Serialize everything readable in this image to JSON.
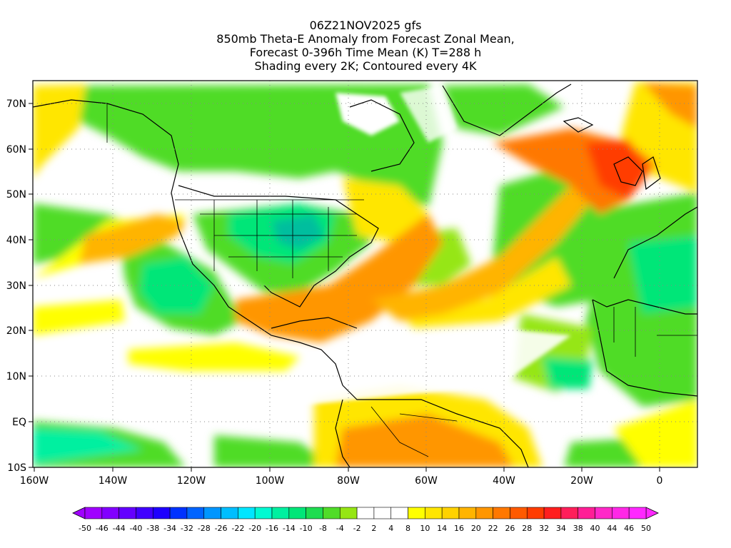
{
  "title": {
    "line1": "06Z21NOV2025 gfs",
    "line2": "850mb Theta-E Anomaly from Forecast Zonal Mean,",
    "line3": "Forecast 0-396h Time Mean (K) T=288 h",
    "line4": "Shading every 2K; Contoured every 4K"
  },
  "map": {
    "lon_range": [
      -160,
      10
    ],
    "lat_range": [
      -10,
      75
    ],
    "x_ticks": [
      "160W",
      "140W",
      "120W",
      "100W",
      "80W",
      "60W",
      "40W",
      "20W",
      "0"
    ],
    "y_ticks": [
      "10S",
      "EQ",
      "10N",
      "20N",
      "30N",
      "40N",
      "50N",
      "60N",
      "70N"
    ],
    "grid": "dotted"
  },
  "colorbar": {
    "labels": [
      "-50",
      "-46",
      "-44",
      "-40",
      "-38",
      "-34",
      "-32",
      "-28",
      "-26",
      "-22",
      "-20",
      "-16",
      "-14",
      "-10",
      "-8",
      "-4",
      "-2",
      "2",
      "4",
      "8",
      "10",
      "14",
      "16",
      "20",
      "22",
      "26",
      "28",
      "32",
      "34",
      "38",
      "40",
      "44",
      "46",
      "50"
    ],
    "colors": [
      "#a000ff",
      "#8200ff",
      "#6400ff",
      "#4000ff",
      "#1e00ff",
      "#0032ff",
      "#0064ff",
      "#0096ff",
      "#00beff",
      "#00e6ff",
      "#00fad2",
      "#00f0a0",
      "#00e678",
      "#1edc50",
      "#50dc28",
      "#96e614",
      "#ffffff",
      "#ffffff",
      "#ffffff",
      "#ffff00",
      "#ffe600",
      "#ffd200",
      "#ffb400",
      "#ff9600",
      "#ff7800",
      "#ff5a00",
      "#ff3c00",
      "#ff1e1e",
      "#ff1e5a",
      "#ff1e96",
      "#ff28c8",
      "#ff28e6",
      "#ff28ff"
    ]
  }
}
